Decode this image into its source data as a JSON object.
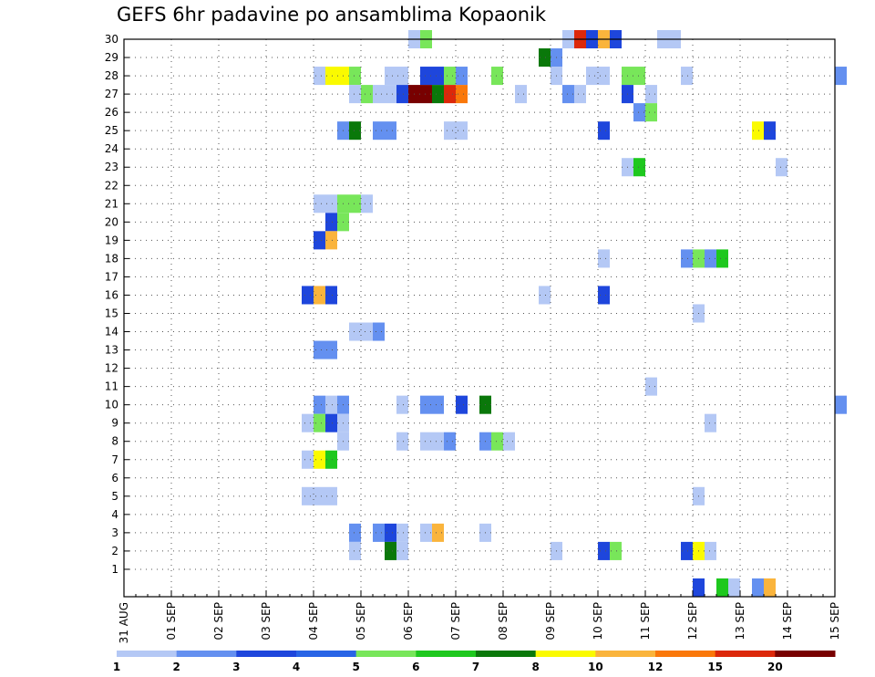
{
  "chart_data": {
    "type": "heatmap",
    "title": "GEFS 6hr padavine po ansamblima Kopaonik",
    "xlabel": "",
    "ylabel": "",
    "x_tick_labels": [
      "31 AUG",
      "01 SEP",
      "02 SEP",
      "03 SEP",
      "04 SEP",
      "05 SEP",
      "06 SEP",
      "07 SEP",
      "08 SEP",
      "09 SEP",
      "10 SEP",
      "11 SEP",
      "12 SEP",
      "13 SEP",
      "14 SEP",
      "15 SEP"
    ],
    "x_range_days": [
      0,
      15
    ],
    "y_tick_labels": [
      "1",
      "2",
      "3",
      "4",
      "5",
      "6",
      "7",
      "8",
      "9",
      "10",
      "11",
      "12",
      "13",
      "14",
      "15",
      "16",
      "17",
      "18",
      "19",
      "20",
      "21",
      "22",
      "23",
      "24",
      "25",
      "26",
      "27",
      "28",
      "29",
      "30"
    ],
    "y_range": [
      0,
      30
    ],
    "grid": true,
    "colorbar": {
      "labels": [
        "1",
        "2",
        "3",
        "4",
        "5",
        "6",
        "7",
        "8",
        "10",
        "12",
        "15",
        "20"
      ],
      "colors": [
        "#b4c8f5",
        "#6490f0",
        "#1e46dc",
        "#2864e6",
        "#78e65a",
        "#1ec81e",
        "#0a780a",
        "#fafa00",
        "#fab43c",
        "#fa780a",
        "#dc280a",
        "#780000"
      ]
    },
    "cells": [
      {
        "member": 30,
        "t": 9.75,
        "c": 2
      },
      {
        "member": 30,
        "t": 9.25,
        "c": 0
      },
      {
        "member": 30,
        "t": 6.0,
        "c": 0
      },
      {
        "member": 30,
        "t": 6.25,
        "c": 4
      },
      {
        "member": 30,
        "t": 9.5,
        "c": 10
      },
      {
        "member": 30,
        "t": 10.0,
        "c": 8
      },
      {
        "member": 30,
        "t": 10.25,
        "c": 2
      },
      {
        "member": 30,
        "t": 11.25,
        "c": 0
      },
      {
        "member": 30,
        "t": 11.5,
        "c": 0
      },
      {
        "member": 29,
        "t": 8.75,
        "c": 6
      },
      {
        "member": 29,
        "t": 9.0,
        "c": 1
      },
      {
        "member": 28,
        "t": 4.0,
        "c": 0
      },
      {
        "member": 28,
        "t": 4.25,
        "c": 7
      },
      {
        "member": 28,
        "t": 4.5,
        "c": 7
      },
      {
        "member": 28,
        "t": 4.75,
        "c": 4
      },
      {
        "member": 28,
        "t": 5.5,
        "c": 0
      },
      {
        "member": 28,
        "t": 5.75,
        "c": 0
      },
      {
        "member": 28,
        "t": 6.25,
        "c": 2
      },
      {
        "member": 28,
        "t": 6.5,
        "c": 2
      },
      {
        "member": 28,
        "t": 6.75,
        "c": 4
      },
      {
        "member": 28,
        "t": 7.0,
        "c": 1
      },
      {
        "member": 28,
        "t": 7.75,
        "c": 4
      },
      {
        "member": 28,
        "t": 9.0,
        "c": 0
      },
      {
        "member": 28,
        "t": 9.75,
        "c": 0
      },
      {
        "member": 28,
        "t": 10.0,
        "c": 0
      },
      {
        "member": 28,
        "t": 10.5,
        "c": 4
      },
      {
        "member": 28,
        "t": 10.75,
        "c": 4
      },
      {
        "member": 28,
        "t": 11.75,
        "c": 0
      },
      {
        "member": 28,
        "t": 15.0,
        "c": 1
      },
      {
        "member": 27,
        "t": 4.75,
        "c": 0
      },
      {
        "member": 27,
        "t": 5.0,
        "c": 4
      },
      {
        "member": 27,
        "t": 5.25,
        "c": 0
      },
      {
        "member": 27,
        "t": 5.5,
        "c": 0
      },
      {
        "member": 27,
        "t": 5.75,
        "c": 2
      },
      {
        "member": 27,
        "t": 6.0,
        "c": 11
      },
      {
        "member": 27,
        "t": 6.25,
        "c": 11
      },
      {
        "member": 27,
        "t": 6.5,
        "c": 6
      },
      {
        "member": 27,
        "t": 6.75,
        "c": 10
      },
      {
        "member": 27,
        "t": 7.0,
        "c": 9
      },
      {
        "member": 27,
        "t": 8.25,
        "c": 0
      },
      {
        "member": 27,
        "t": 9.25,
        "c": 1
      },
      {
        "member": 27,
        "t": 9.5,
        "c": 0
      },
      {
        "member": 27,
        "t": 10.5,
        "c": 2
      },
      {
        "member": 27,
        "t": 11.0,
        "c": 0
      },
      {
        "member": 26,
        "t": 10.75,
        "c": 1
      },
      {
        "member": 26,
        "t": 11.0,
        "c": 4
      },
      {
        "member": 25,
        "t": 4.5,
        "c": 1
      },
      {
        "member": 25,
        "t": 4.75,
        "c": 6
      },
      {
        "member": 25,
        "t": 5.25,
        "c": 1
      },
      {
        "member": 25,
        "t": 5.5,
        "c": 1
      },
      {
        "member": 25,
        "t": 6.75,
        "c": 0
      },
      {
        "member": 25,
        "t": 7.0,
        "c": 0
      },
      {
        "member": 25,
        "t": 10.0,
        "c": 2
      },
      {
        "member": 25,
        "t": 13.25,
        "c": 7
      },
      {
        "member": 25,
        "t": 13.5,
        "c": 2
      },
      {
        "member": 23,
        "t": 10.5,
        "c": 0
      },
      {
        "member": 23,
        "t": 10.75,
        "c": 5
      },
      {
        "member": 23,
        "t": 13.75,
        "c": 0
      },
      {
        "member": 21,
        "t": 4.0,
        "c": 0
      },
      {
        "member": 21,
        "t": 4.25,
        "c": 0
      },
      {
        "member": 21,
        "t": 4.5,
        "c": 4
      },
      {
        "member": 21,
        "t": 4.75,
        "c": 4
      },
      {
        "member": 21,
        "t": 5.0,
        "c": 0
      },
      {
        "member": 20,
        "t": 4.25,
        "c": 2
      },
      {
        "member": 20,
        "t": 4.5,
        "c": 4
      },
      {
        "member": 19,
        "t": 4.0,
        "c": 2
      },
      {
        "member": 19,
        "t": 4.25,
        "c": 8
      },
      {
        "member": 18,
        "t": 10.0,
        "c": 0
      },
      {
        "member": 18,
        "t": 11.75,
        "c": 1
      },
      {
        "member": 18,
        "t": 12.0,
        "c": 4
      },
      {
        "member": 18,
        "t": 12.25,
        "c": 1
      },
      {
        "member": 18,
        "t": 12.5,
        "c": 5
      },
      {
        "member": 16,
        "t": 3.75,
        "c": 2
      },
      {
        "member": 16,
        "t": 4.0,
        "c": 8
      },
      {
        "member": 16,
        "t": 4.25,
        "c": 2
      },
      {
        "member": 16,
        "t": 8.75,
        "c": 0
      },
      {
        "member": 16,
        "t": 10.0,
        "c": 2
      },
      {
        "member": 15,
        "t": 12.0,
        "c": 0
      },
      {
        "member": 14,
        "t": 4.75,
        "c": 0
      },
      {
        "member": 14,
        "t": 5.0,
        "c": 0
      },
      {
        "member": 14,
        "t": 5.25,
        "c": 1
      },
      {
        "member": 13,
        "t": 4.0,
        "c": 1
      },
      {
        "member": 13,
        "t": 4.25,
        "c": 1
      },
      {
        "member": 11,
        "t": 11.0,
        "c": 0
      },
      {
        "member": 10,
        "t": 4.0,
        "c": 1
      },
      {
        "member": 10,
        "t": 4.25,
        "c": 0
      },
      {
        "member": 10,
        "t": 4.5,
        "c": 1
      },
      {
        "member": 10,
        "t": 5.75,
        "c": 0
      },
      {
        "member": 10,
        "t": 6.25,
        "c": 1
      },
      {
        "member": 10,
        "t": 6.5,
        "c": 1
      },
      {
        "member": 10,
        "t": 7.0,
        "c": 2
      },
      {
        "member": 10,
        "t": 7.5,
        "c": 6
      },
      {
        "member": 10,
        "t": 15.0,
        "c": 1
      },
      {
        "member": 9,
        "t": 3.75,
        "c": 0
      },
      {
        "member": 9,
        "t": 4.0,
        "c": 4
      },
      {
        "member": 9,
        "t": 4.25,
        "c": 2
      },
      {
        "member": 9,
        "t": 4.5,
        "c": 0
      },
      {
        "member": 9,
        "t": 12.25,
        "c": 0
      },
      {
        "member": 8,
        "t": 4.5,
        "c": 0
      },
      {
        "member": 8,
        "t": 5.75,
        "c": 0
      },
      {
        "member": 8,
        "t": 6.25,
        "c": 0
      },
      {
        "member": 8,
        "t": 6.5,
        "c": 0
      },
      {
        "member": 8,
        "t": 6.75,
        "c": 1
      },
      {
        "member": 8,
        "t": 7.5,
        "c": 1
      },
      {
        "member": 8,
        "t": 7.75,
        "c": 4
      },
      {
        "member": 8,
        "t": 8.0,
        "c": 0
      },
      {
        "member": 7,
        "t": 3.75,
        "c": 0
      },
      {
        "member": 7,
        "t": 4.0,
        "c": 7
      },
      {
        "member": 7,
        "t": 4.25,
        "c": 5
      },
      {
        "member": 5,
        "t": 3.75,
        "c": 0
      },
      {
        "member": 5,
        "t": 4.0,
        "c": 0
      },
      {
        "member": 5,
        "t": 4.25,
        "c": 0
      },
      {
        "member": 5,
        "t": 12.0,
        "c": 0
      },
      {
        "member": 3,
        "t": 4.75,
        "c": 1
      },
      {
        "member": 3,
        "t": 5.25,
        "c": 1
      },
      {
        "member": 3,
        "t": 5.5,
        "c": 2
      },
      {
        "member": 3,
        "t": 5.75,
        "c": 0
      },
      {
        "member": 3,
        "t": 6.25,
        "c": 0
      },
      {
        "member": 3,
        "t": 6.5,
        "c": 8
      },
      {
        "member": 3,
        "t": 7.5,
        "c": 0
      },
      {
        "member": 2,
        "t": 4.75,
        "c": 0
      },
      {
        "member": 2,
        "t": 5.5,
        "c": 6
      },
      {
        "member": 2,
        "t": 5.75,
        "c": 0
      },
      {
        "member": 2,
        "t": 9.0,
        "c": 0
      },
      {
        "member": 2,
        "t": 10.0,
        "c": 2
      },
      {
        "member": 2,
        "t": 10.25,
        "c": 4
      },
      {
        "member": 2,
        "t": 11.75,
        "c": 2
      },
      {
        "member": 2,
        "t": 12.0,
        "c": 7
      },
      {
        "member": 2,
        "t": 12.25,
        "c": 0
      },
      {
        "member": 0,
        "t": 12.0,
        "c": 2
      },
      {
        "member": 0,
        "t": 12.5,
        "c": 5
      },
      {
        "member": 0,
        "t": 12.75,
        "c": 0
      },
      {
        "member": 0,
        "t": 13.25,
        "c": 1
      },
      {
        "member": 0,
        "t": 13.5,
        "c": 8
      }
    ]
  }
}
